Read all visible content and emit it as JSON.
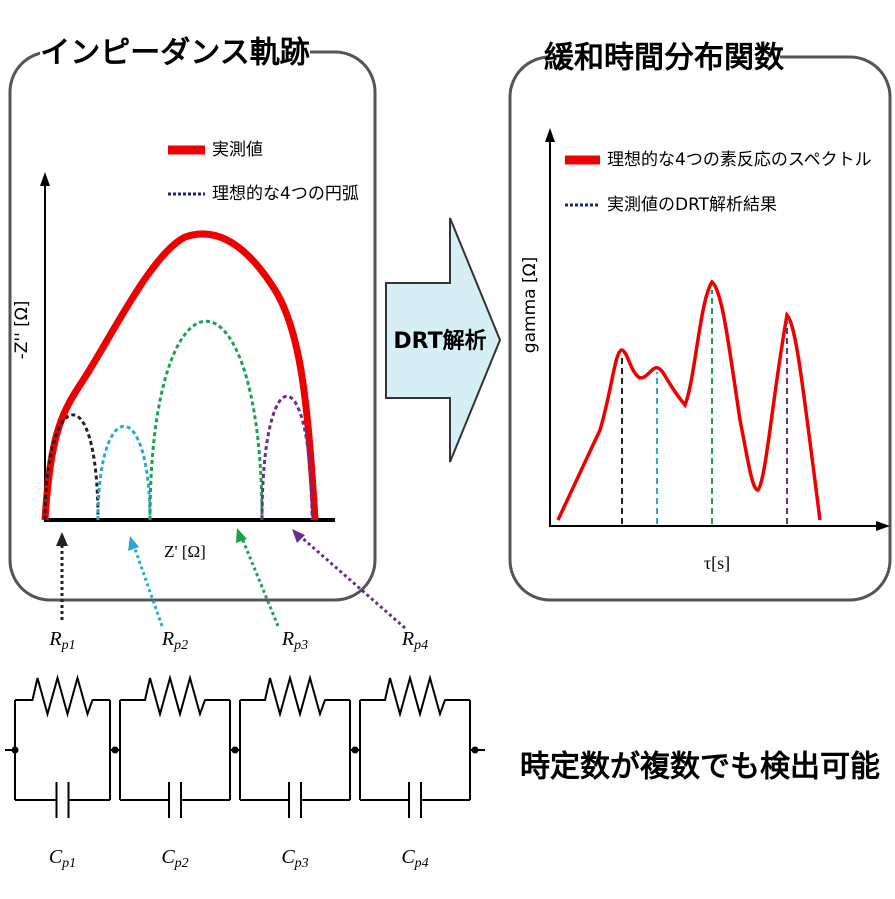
{
  "left_panel": {
    "title": "インピーダンス軌跡",
    "legend": [
      "実測値",
      "理想的な4つの円弧"
    ],
    "y_axis_label": "-Z'' [Ω]",
    "x_axis_label": "Z' [Ω]"
  },
  "arrow_label": "DRT解析",
  "right_panel": {
    "title": "緩和時間分布関数",
    "legend": [
      "理想的な4つの素反応のスペクトル",
      "実測値のDRT解析結果"
    ],
    "y_axis_label": "gamma [Ω]",
    "x_axis_label": "τ[s]"
  },
  "circuit": {
    "resistors": [
      {
        "symbol": "R",
        "sub": "p1"
      },
      {
        "symbol": "R",
        "sub": "p2"
      },
      {
        "symbol": "R",
        "sub": "p3"
      },
      {
        "symbol": "R",
        "sub": "p4"
      }
    ],
    "capacitors": [
      {
        "symbol": "C",
        "sub": "p1"
      },
      {
        "symbol": "C",
        "sub": "p2"
      },
      {
        "symbol": "C",
        "sub": "p3"
      },
      {
        "symbol": "C",
        "sub": "p4"
      }
    ]
  },
  "conclusion": "時定数が複数でも検出可能"
}
